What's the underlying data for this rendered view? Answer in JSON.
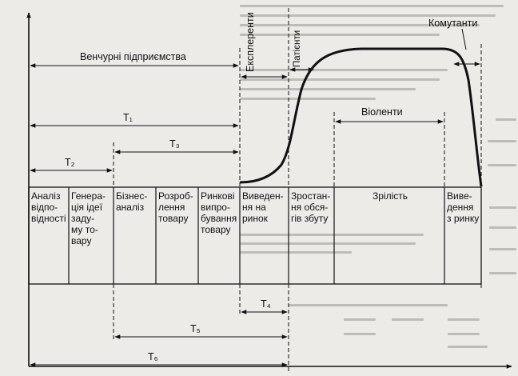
{
  "stages": [
    {
      "id": "analysis",
      "text": "Аналіз\nвідпо-\nвідності"
    },
    {
      "id": "idea",
      "text": "Генера-\nція ідеї\nзаду-\nму то-\nвару"
    },
    {
      "id": "business",
      "text": "Бізнес-\nаналіз"
    },
    {
      "id": "development",
      "text": "Розроб-\nлення\nтовару"
    },
    {
      "id": "testing",
      "text": "Ринкові\nвипро-\nбування\nтовару"
    },
    {
      "id": "introduction",
      "text": "Виведен-\nня на\nринок"
    },
    {
      "id": "growth",
      "text": "Зростан-\nня обся-\nгів збуту"
    },
    {
      "id": "maturity",
      "text": "Зрілість"
    },
    {
      "id": "withdrawal",
      "text": "Виве-\nдення\nз ринку"
    }
  ],
  "phases": {
    "venture": "Венчурні підприємства",
    "explerents": "Експлеренти",
    "patients": "Патієнти",
    "violents": "Віоленти",
    "commutants": "Комутанти"
  },
  "intervals": {
    "t1": "T₁",
    "t2": "T₂",
    "t3": "T₃",
    "t4": "T₄",
    "t5": "T₅",
    "t6": "T₆"
  },
  "colors": {
    "ink": "#111111",
    "paper": "#ecebe8"
  }
}
